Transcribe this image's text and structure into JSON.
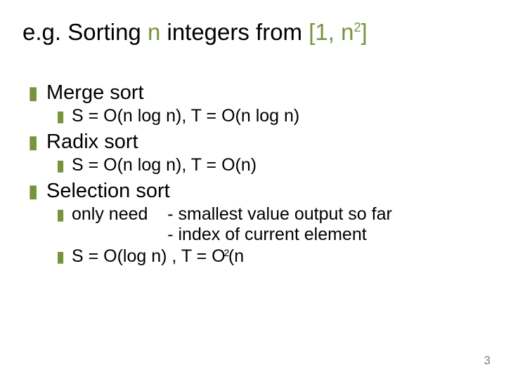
{
  "colors": {
    "accent": "#77933c",
    "text": "#000000",
    "background": "#ffffff",
    "pagenum": "#7f7f7f"
  },
  "bulletChars": {
    "level1": "▮",
    "level2": "▮"
  },
  "title": {
    "p1": "e.g. Sorting ",
    "p2_n": "n",
    "p3": " integers from ",
    "p4_br": "[1, n",
    "p4_sup": "2",
    "p4_close": "]"
  },
  "items": {
    "merge": {
      "label": "Merge sort",
      "detail": "S = O(n log n),   T = O(n log n)"
    },
    "radix": {
      "label": "Radix sort",
      "detail": "S = O(n log n),   T = O(n)"
    },
    "selection": {
      "label": "Selection sort",
      "need_prefix": "only need    ",
      "need_line1": "- smallest value output so far",
      "need_line2": "- index of current element",
      "complexity_pre": "S = O(log n) ,   T = O",
      "complexity_sup": "2",
      "complexity_post": "(n"
    }
  },
  "pagenum": "3"
}
